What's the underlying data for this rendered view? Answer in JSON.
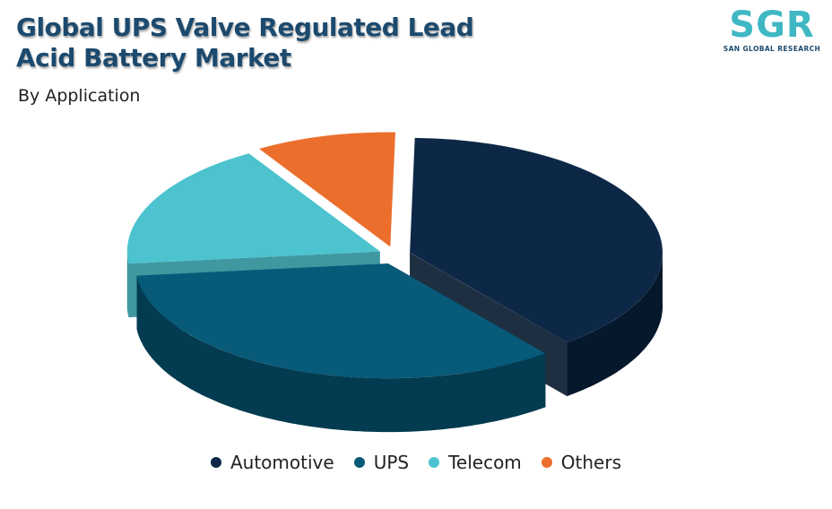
{
  "title": {
    "line1": "Global UPS Valve Regulated Lead",
    "line2": "Acid Battery Market"
  },
  "subtitle": "By Application",
  "logo": {
    "mark": "SGR",
    "text": "SAN GLOBAL RESEARCH"
  },
  "chart_data": {
    "type": "pie",
    "title": "Global UPS Valve Regulated Lead Acid Battery Market",
    "subtitle": "By Application",
    "categories": [
      "Automotive",
      "UPS",
      "Telecom",
      "Others"
    ],
    "values": [
      39,
      34,
      18,
      9
    ],
    "value_unit": "%",
    "colors": [
      "#0d2847",
      "#075a78",
      "#4cc3cf",
      "#ec6e2d"
    ],
    "side_colors": [
      "#06182c",
      "#033b50",
      "#2a8d96",
      "#a9481c"
    ],
    "style": "3d-exploded",
    "legend_position": "bottom"
  }
}
